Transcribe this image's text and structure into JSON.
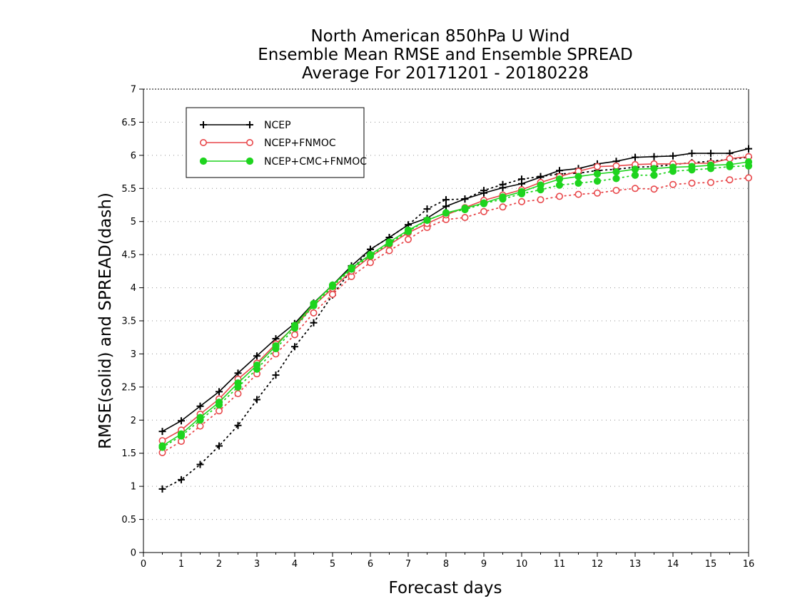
{
  "chart_data": {
    "type": "line",
    "title": [
      "North American 850hPa U Wind",
      "Ensemble Mean RMSE and Ensemble SPREAD",
      "Average For 20171201 - 20180228"
    ],
    "xlabel": "Forecast days",
    "ylabel": "RMSE(solid) and SPREAD(dash)",
    "xlim": [
      0,
      16
    ],
    "ylim": [
      0,
      7
    ],
    "xticks": [
      "0",
      "1",
      "2",
      "3",
      "4",
      "5",
      "6",
      "7",
      "8",
      "9",
      "10",
      "11",
      "12",
      "13",
      "14",
      "15",
      "16"
    ],
    "yticks": [
      "0",
      "0.5",
      "1",
      "1.5",
      "2",
      "2.5",
      "3",
      "3.5",
      "4",
      "4.5",
      "5",
      "5.5",
      "6",
      "6.5",
      "7"
    ],
    "grid": "horizontal dotted",
    "legend_position": "top-left",
    "x": [
      0.5,
      1,
      1.5,
      2,
      2.5,
      3,
      3.5,
      4,
      4.5,
      5,
      5.5,
      6,
      6.5,
      7,
      7.5,
      8,
      8.5,
      9,
      9.5,
      10,
      10.5,
      11,
      11.5,
      12,
      12.5,
      13,
      13.5,
      14,
      14.5,
      15,
      15.5,
      16
    ],
    "series": [
      {
        "name": "NCEP",
        "marker": "plus",
        "color": "#000000",
        "rmse": [
          1.83,
          1.99,
          2.21,
          2.43,
          2.71,
          2.97,
          3.23,
          3.46,
          3.77,
          4.04,
          4.33,
          4.58,
          4.76,
          4.95,
          5.05,
          5.23,
          5.34,
          5.43,
          5.51,
          5.57,
          5.67,
          5.77,
          5.8,
          5.87,
          5.91,
          5.97,
          5.98,
          5.99,
          6.03,
          6.03,
          6.03,
          6.1
        ],
        "spread": [
          0.96,
          1.1,
          1.33,
          1.61,
          1.92,
          2.31,
          2.68,
          3.11,
          3.47,
          3.89,
          4.27,
          4.58,
          4.76,
          4.95,
          5.19,
          5.33,
          5.34,
          5.47,
          5.56,
          5.64,
          5.68,
          5.72,
          5.73,
          5.77,
          5.79,
          5.82,
          5.83,
          5.86,
          5.89,
          5.91,
          5.94,
          5.97
        ]
      },
      {
        "name": "NCEP+FNMOC",
        "marker": "open-circle",
        "color": "#e8474a",
        "rmse": [
          1.69,
          1.85,
          2.09,
          2.32,
          2.62,
          2.86,
          3.15,
          3.41,
          3.73,
          3.99,
          4.25,
          4.47,
          4.65,
          4.83,
          4.97,
          5.1,
          5.21,
          5.32,
          5.4,
          5.48,
          5.59,
          5.68,
          5.76,
          5.83,
          5.84,
          5.86,
          5.87,
          5.87,
          5.88,
          5.88,
          5.95,
          5.98
        ],
        "spread": [
          1.51,
          1.68,
          1.91,
          2.14,
          2.4,
          2.7,
          3.0,
          3.29,
          3.62,
          3.9,
          4.17,
          4.38,
          4.56,
          4.73,
          4.91,
          5.03,
          5.06,
          5.15,
          5.22,
          5.3,
          5.33,
          5.38,
          5.41,
          5.43,
          5.47,
          5.5,
          5.49,
          5.56,
          5.58,
          5.59,
          5.63,
          5.66
        ]
      },
      {
        "name": "NCEP+CMC+FNMOC",
        "marker": "filled-circle",
        "color": "#1ed41e",
        "rmse": [
          1.61,
          1.79,
          2.04,
          2.27,
          2.56,
          2.83,
          3.12,
          3.43,
          3.76,
          4.04,
          4.3,
          4.5,
          4.69,
          4.87,
          5.02,
          5.13,
          5.2,
          5.28,
          5.37,
          5.45,
          5.55,
          5.64,
          5.68,
          5.72,
          5.75,
          5.79,
          5.8,
          5.82,
          5.83,
          5.85,
          5.86,
          5.9
        ],
        "spread": [
          1.59,
          1.76,
          2.0,
          2.23,
          2.5,
          2.77,
          3.08,
          3.39,
          3.73,
          4.02,
          4.28,
          4.48,
          4.67,
          4.85,
          5.02,
          5.13,
          5.18,
          5.27,
          5.34,
          5.42,
          5.48,
          5.55,
          5.58,
          5.61,
          5.65,
          5.7,
          5.7,
          5.76,
          5.78,
          5.8,
          5.83,
          5.84
        ]
      }
    ]
  }
}
